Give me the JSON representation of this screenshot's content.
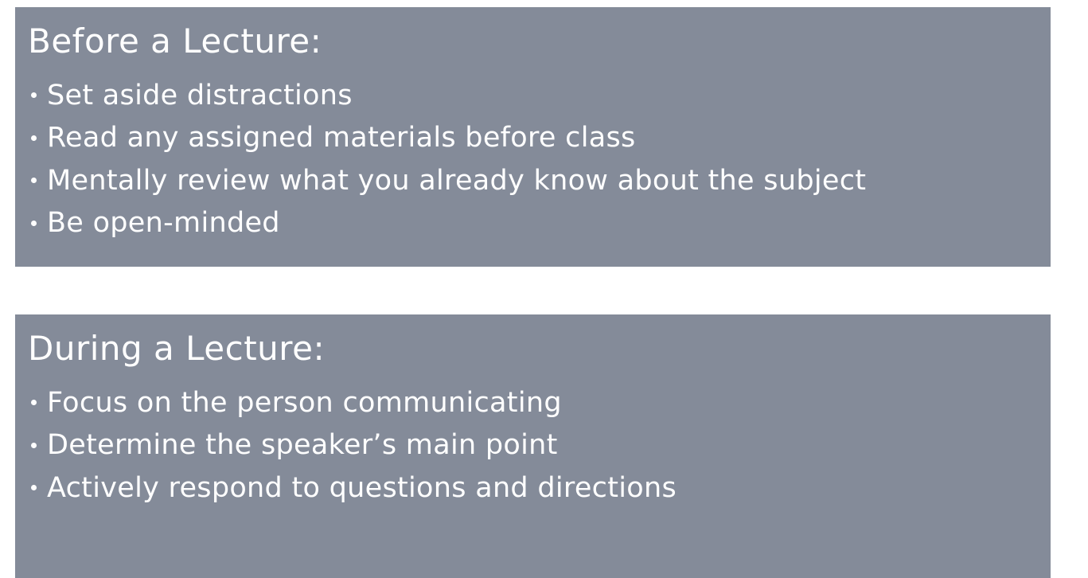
{
  "before": {
    "title": "Before a Lecture:",
    "items": [
      "Set aside distractions",
      "Read any assigned materials before class",
      "Mentally review what you already know about the subject",
      "Be open-minded"
    ]
  },
  "during": {
    "title": "During a Lecture:",
    "items": [
      "Focus on the person communicating",
      "Determine the speaker’s main point",
      "Actively respond to questions and directions"
    ]
  },
  "colors": {
    "panel_background": "#848b99",
    "text": "#ffffff",
    "page_background": "#ffffff"
  }
}
